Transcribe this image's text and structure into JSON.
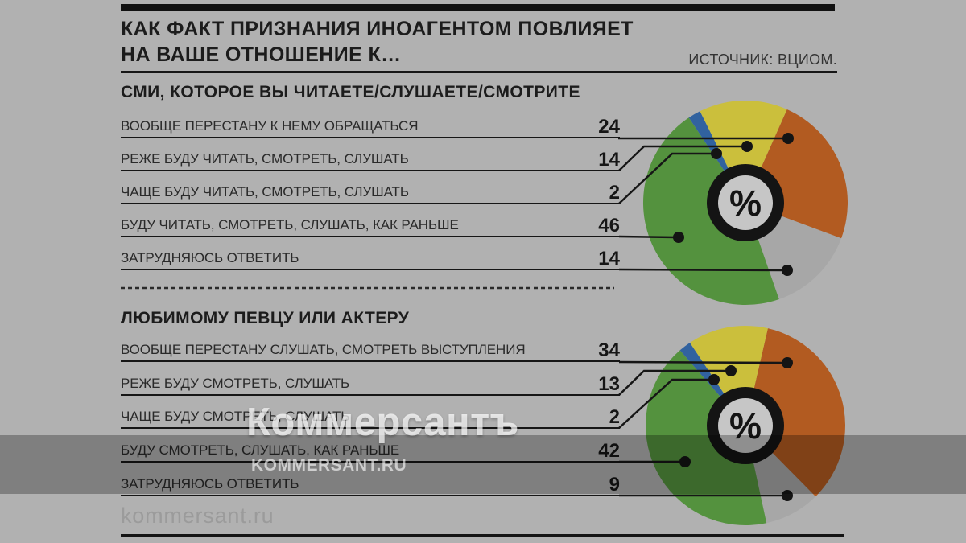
{
  "header": {
    "title_line1": "КАК ФАКТ ПРИЗНАНИЯ ИНОАГЕНТОМ ПОВЛИЯЕТ",
    "title_line2": "НА ВАШЕ ОТНОШЕНИЕ К…",
    "source": "ИСТОЧНИК: ВЦИОМ."
  },
  "watermark": {
    "brand": "Коммерсантъ",
    "site": "KOMMERSANT.RU"
  },
  "footer": {
    "site": "kommersant.ru"
  },
  "chart_data": [
    {
      "type": "pie",
      "title": "СМИ, КОТОРОЕ ВЫ ЧИТАЕТЕ/СЛУШАЕТЕ/СМОТРИТЕ",
      "unit": "%",
      "center_label": "%",
      "start_angle_deg": 24,
      "draw_order": [
        0,
        4,
        3,
        2,
        1
      ],
      "slices": [
        {
          "label": "ВООБЩЕ ПЕРЕСТАНУ К НЕМУ ОБРАЩАТЬСЯ",
          "value": 24,
          "color": "#b25b21"
        },
        {
          "label": "РЕЖЕ БУДУ ЧИТАТЬ, СМОТРЕТЬ, СЛУШАТЬ",
          "value": 14,
          "color": "#cbbf3c"
        },
        {
          "label": "ЧАЩЕ БУДУ ЧИТАТЬ, СМОТРЕТЬ, СЛУШАТЬ",
          "value": 2,
          "color": "#31629f"
        },
        {
          "label": "БУДУ ЧИТАТЬ, СМОТРЕТЬ, СЛУШАТЬ, КАК РАНЬШЕ",
          "value": 46,
          "color": "#54923e"
        },
        {
          "label": "ЗАТРУДНЯЮСЬ ОТВЕТИТЬ",
          "value": 14,
          "color": "#a7a7a7"
        }
      ]
    },
    {
      "type": "pie",
      "title": "ЛЮБИМОМУ ПЕВЦУ ИЛИ АКТЕРУ",
      "unit": "%",
      "center_label": "%",
      "start_angle_deg": 13,
      "draw_order": [
        0,
        4,
        3,
        2,
        1
      ],
      "slices": [
        {
          "label": "ВООБЩЕ ПЕРЕСТАНУ СЛУШАТЬ, СМОТРЕТЬ ВЫСТУПЛЕНИЯ",
          "value": 34,
          "color": "#b25b21"
        },
        {
          "label": "РЕЖЕ БУДУ СМОТРЕТЬ, СЛУШАТЬ",
          "value": 13,
          "color": "#cbbf3c"
        },
        {
          "label": "ЧАЩЕ БУДУ СМОТРЕТЬ, СЛУШАТЬ",
          "value": 2,
          "color": "#31629f"
        },
        {
          "label": "БУДУ СМОТРЕТЬ, СЛУШАТЬ, КАК РАНЬШЕ",
          "value": 42,
          "color": "#54923e"
        },
        {
          "label": "ЗАТРУДНЯЮСЬ ОТВЕТИТЬ",
          "value": 9,
          "color": "#a7a7a7"
        }
      ]
    }
  ]
}
